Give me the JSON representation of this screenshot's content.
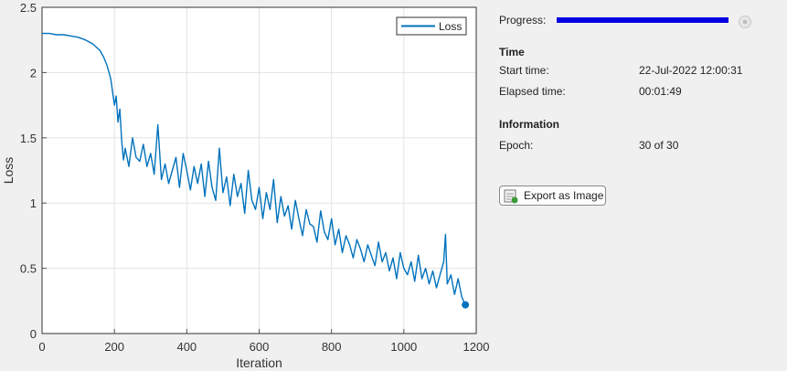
{
  "chart_data": {
    "type": "line",
    "xlabel": "Iteration",
    "ylabel": "Loss",
    "xlim": [
      0,
      1200
    ],
    "ylim": [
      0,
      2.5
    ],
    "xticks": [
      0,
      200,
      400,
      600,
      800,
      1000,
      1200
    ],
    "yticks": [
      0,
      0.5,
      1,
      1.5,
      2,
      2.5
    ],
    "xtick_labels": [
      "0",
      "200",
      "400",
      "600",
      "800",
      "1000",
      "1200"
    ],
    "ytick_labels": [
      "0",
      "0.5",
      "1",
      "1.5",
      "2",
      "2.5"
    ],
    "grid": true,
    "legend_position": "top-right",
    "series": [
      {
        "name": "Loss",
        "color": "#0072bd",
        "x": [
          0,
          20,
          40,
          60,
          80,
          100,
          120,
          140,
          160,
          170,
          180,
          190,
          195,
          200,
          205,
          210,
          215,
          220,
          225,
          230,
          240,
          250,
          260,
          270,
          280,
          290,
          300,
          310,
          320,
          330,
          340,
          350,
          360,
          370,
          380,
          390,
          400,
          410,
          420,
          430,
          440,
          450,
          460,
          470,
          480,
          490,
          500,
          510,
          520,
          530,
          540,
          550,
          560,
          570,
          580,
          590,
          600,
          610,
          620,
          630,
          640,
          650,
          660,
          670,
          680,
          690,
          700,
          710,
          720,
          730,
          740,
          750,
          760,
          770,
          780,
          790,
          800,
          810,
          820,
          830,
          840,
          850,
          860,
          870,
          880,
          890,
          900,
          910,
          920,
          930,
          940,
          950,
          960,
          970,
          980,
          990,
          1000,
          1010,
          1020,
          1030,
          1040,
          1050,
          1060,
          1070,
          1080,
          1090,
          1100,
          1110,
          1115,
          1120,
          1130,
          1140,
          1150,
          1160,
          1170
        ],
        "y": [
          2.3,
          2.3,
          2.29,
          2.29,
          2.28,
          2.27,
          2.25,
          2.22,
          2.17,
          2.12,
          2.05,
          1.95,
          1.85,
          1.75,
          1.82,
          1.62,
          1.72,
          1.48,
          1.33,
          1.42,
          1.28,
          1.5,
          1.35,
          1.32,
          1.45,
          1.28,
          1.38,
          1.22,
          1.6,
          1.18,
          1.3,
          1.15,
          1.25,
          1.35,
          1.12,
          1.38,
          1.25,
          1.1,
          1.28,
          1.15,
          1.3,
          1.05,
          1.32,
          1.12,
          1.02,
          1.42,
          1.08,
          1.2,
          0.98,
          1.22,
          1.05,
          1.15,
          0.92,
          1.25,
          1.02,
          0.95,
          1.12,
          0.88,
          1.08,
          0.95,
          1.18,
          0.85,
          1.05,
          0.9,
          0.98,
          0.8,
          1.02,
          0.88,
          0.75,
          0.95,
          0.84,
          0.82,
          0.7,
          0.94,
          0.78,
          0.72,
          0.88,
          0.68,
          0.8,
          0.62,
          0.75,
          0.68,
          0.58,
          0.72,
          0.65,
          0.55,
          0.68,
          0.6,
          0.52,
          0.7,
          0.55,
          0.62,
          0.48,
          0.58,
          0.42,
          0.62,
          0.5,
          0.45,
          0.55,
          0.4,
          0.6,
          0.42,
          0.5,
          0.38,
          0.48,
          0.35,
          0.45,
          0.55,
          0.76,
          0.38,
          0.45,
          0.3,
          0.42,
          0.28,
          0.22
        ],
        "final_marker": {
          "x": 1170,
          "y": 0.22
        }
      }
    ]
  },
  "progress": {
    "label": "Progress:",
    "fraction": 1.0
  },
  "time": {
    "title": "Time",
    "start_label": "Start time:",
    "start_value": "22-Jul-2022 12:00:31",
    "elapsed_label": "Elapsed time:",
    "elapsed_value": "00:01:49"
  },
  "information": {
    "title": "Information",
    "epoch_label": "Epoch:",
    "epoch_value": "30 of 30"
  },
  "export": {
    "label": "Export as Image"
  },
  "colors": {
    "accent": "#0072bd",
    "progress": "#0000e0"
  }
}
